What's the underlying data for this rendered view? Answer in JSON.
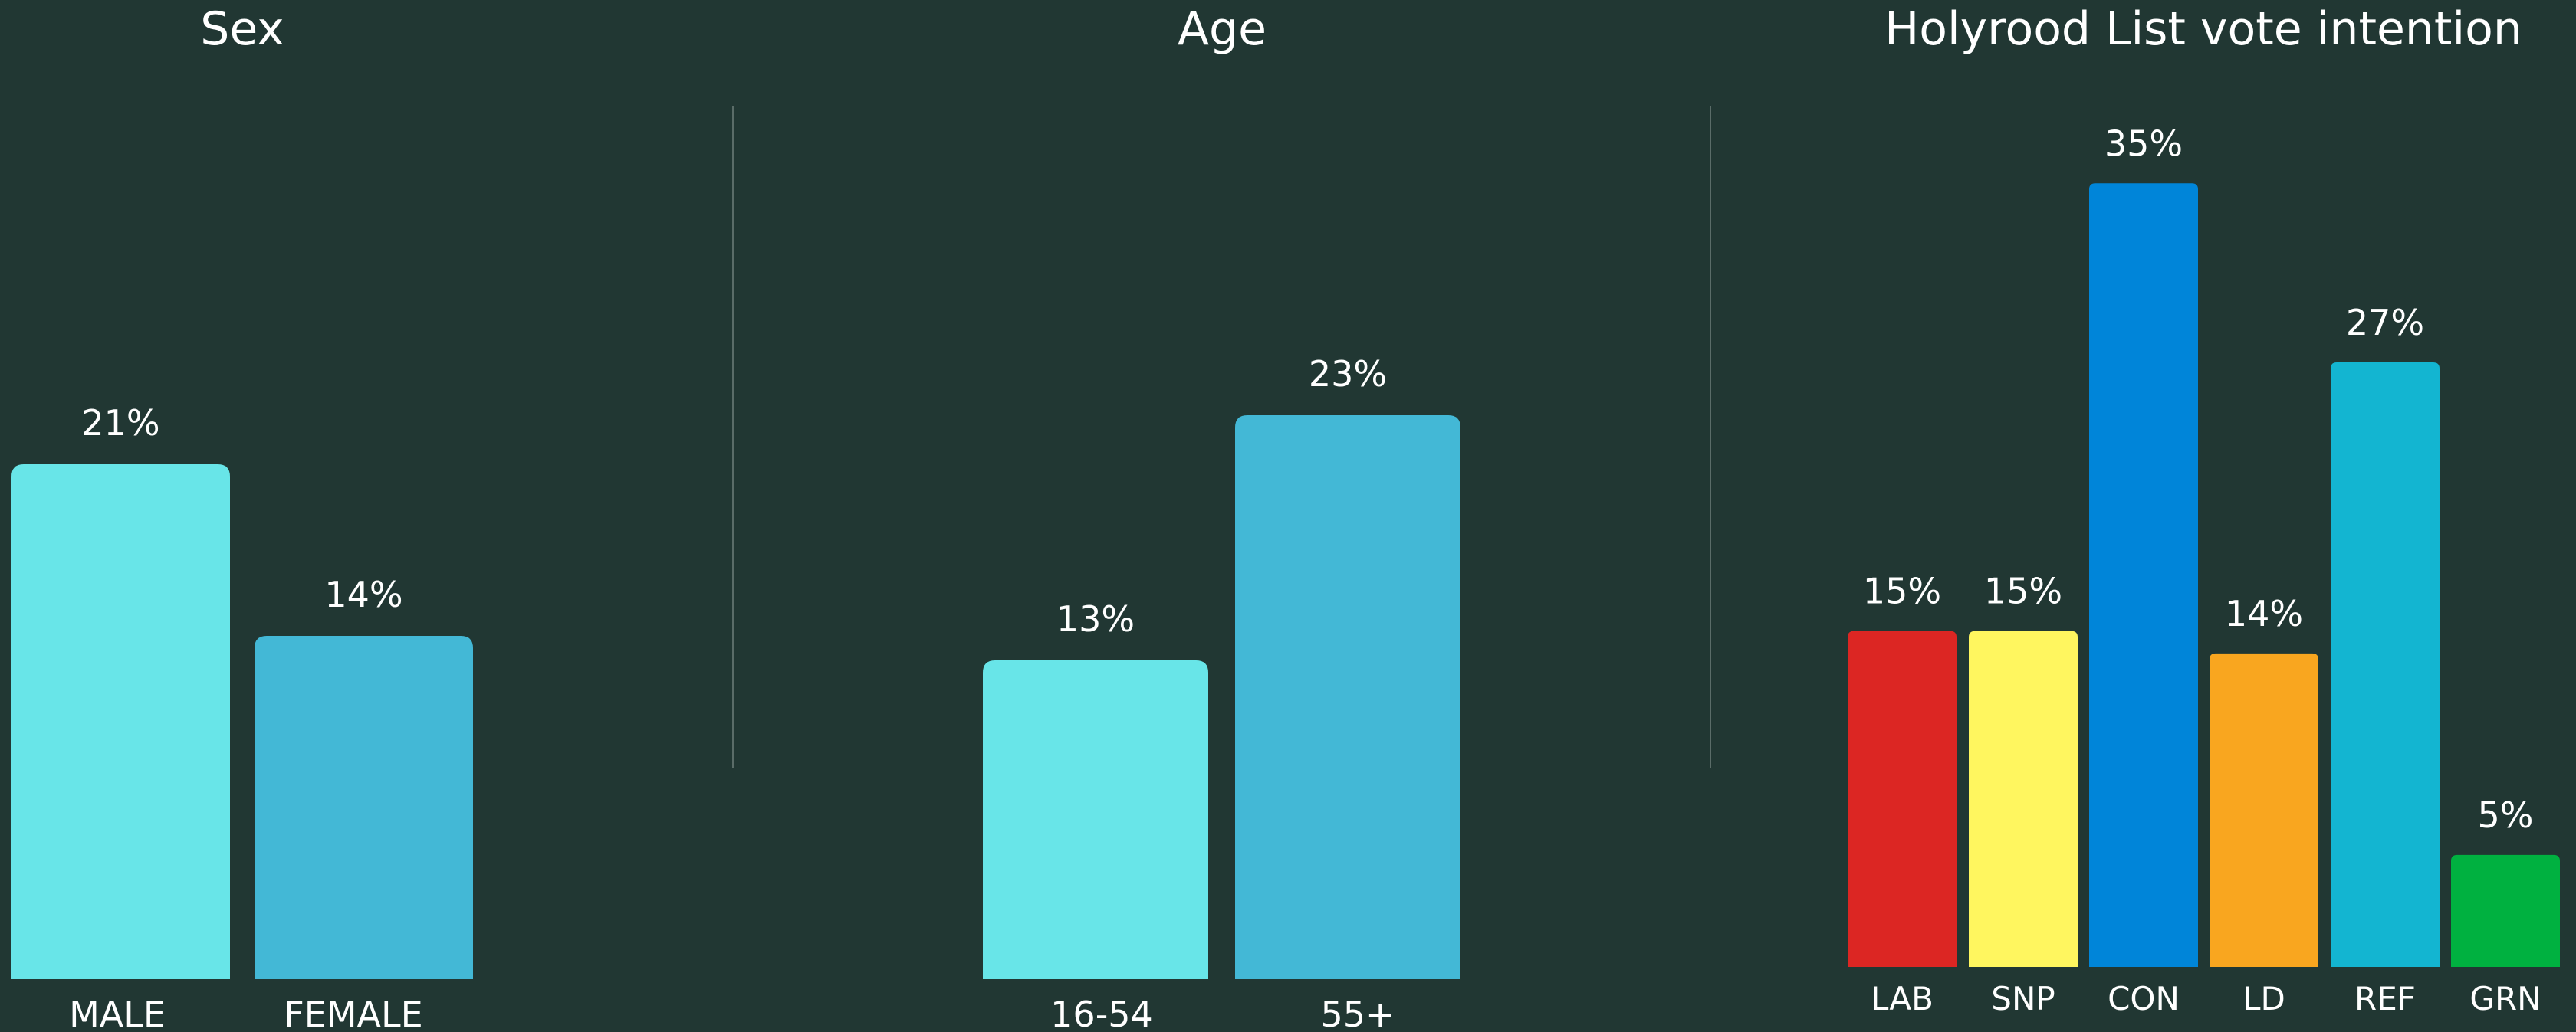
{
  "background": "#213733",
  "chart_data": [
    {
      "type": "bar",
      "title": "Sex",
      "categories": [
        "MALE",
        "FEMALE"
      ],
      "values": [
        21,
        14
      ],
      "value_labels": [
        "21%",
        "14%"
      ],
      "colors": [
        "#68e5e8",
        "#43b8d6"
      ],
      "ylim": [
        0,
        30
      ],
      "grid": false
    },
    {
      "type": "bar",
      "title": "Age",
      "categories": [
        "16-54",
        "55+"
      ],
      "values": [
        13,
        23
      ],
      "value_labels": [
        "13%",
        "23%"
      ],
      "colors": [
        "#68e5e8",
        "#43b8d6"
      ],
      "ylim": [
        0,
        30
      ],
      "grid": false
    },
    {
      "type": "bar",
      "title": "Holyrood List vote intention",
      "categories": [
        "LAB",
        "SNP",
        "CON",
        "LD",
        "REF",
        "GRN"
      ],
      "values": [
        15,
        15,
        35,
        14,
        27,
        5
      ],
      "value_labels": [
        "15%",
        "15%",
        "35%",
        "14%",
        "27%",
        "5%"
      ],
      "colors": [
        "#dc2623",
        "#fff65f",
        "#0085d9",
        "#f9a61f",
        "#13b5d1",
        "#00b140"
      ],
      "ylim": [
        0,
        37
      ],
      "grid": false
    }
  ]
}
